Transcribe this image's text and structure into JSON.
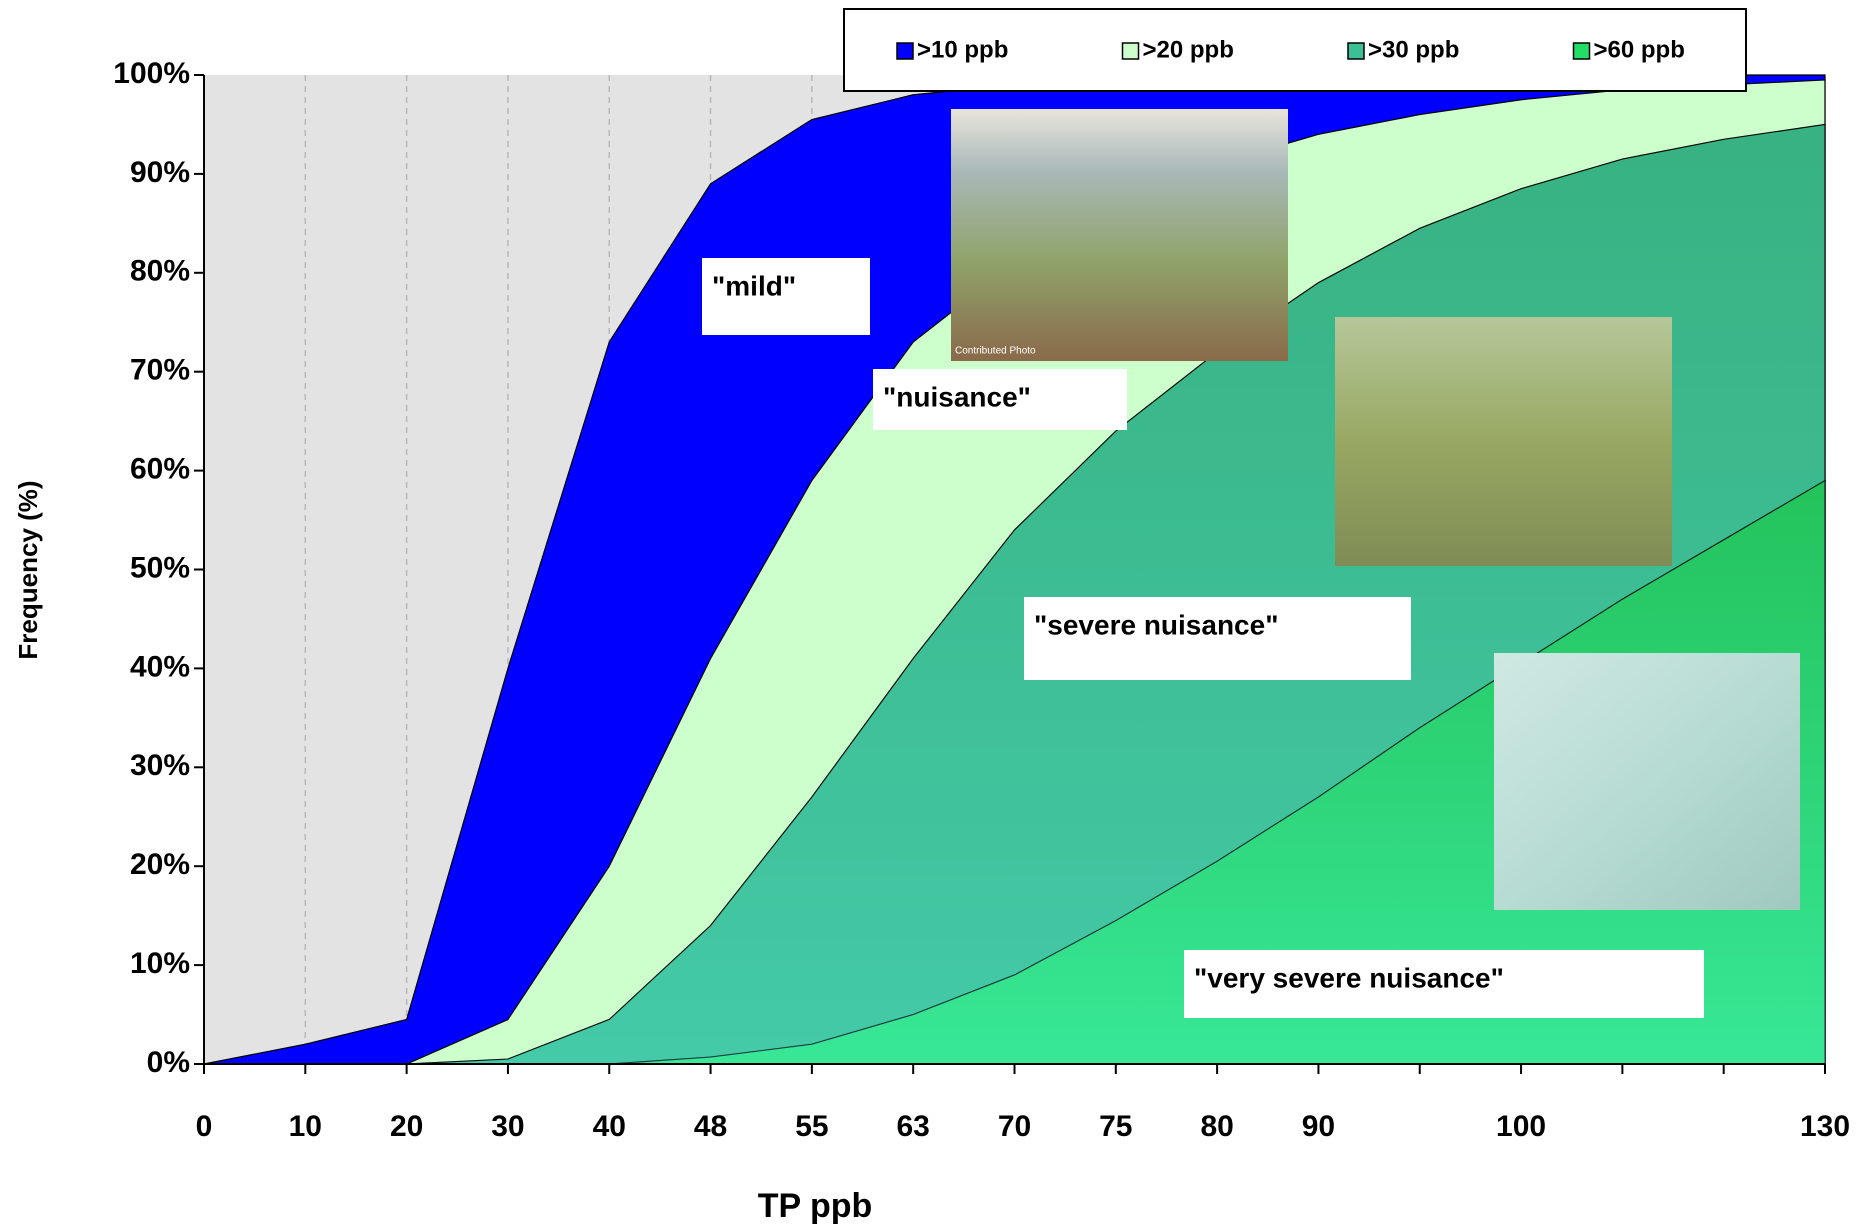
{
  "chart_data": {
    "type": "area",
    "x_label": "TP ppb",
    "y_label": "Frequency (%)",
    "categories": [
      "0",
      "10",
      "20",
      "30",
      "40",
      "48",
      "55",
      "63",
      "70",
      "75",
      "80",
      "90",
      null,
      "100",
      null,
      null,
      "130"
    ],
    "ylim": [
      0,
      100
    ],
    "yticks": [
      {
        "value": 0,
        "label": "0%"
      },
      {
        "value": 10,
        "label": "10%"
      },
      {
        "value": 20,
        "label": "20%"
      },
      {
        "value": 30,
        "label": "30%"
      },
      {
        "value": 40,
        "label": "40%"
      },
      {
        "value": 50,
        "label": "50%"
      },
      {
        "value": 60,
        "label": "60%"
      },
      {
        "value": 70,
        "label": "70%"
      },
      {
        "value": 80,
        "label": "80%"
      },
      {
        "value": 90,
        "label": "90%"
      },
      {
        "value": 100,
        "label": "100%"
      }
    ],
    "grid": true,
    "legend": "top",
    "series": [
      {
        "name": ">10 ppb",
        "color": "#0000ff",
        "values": [
          0,
          2,
          4.5,
          40,
          73,
          89,
          95.5,
          98,
          99,
          99.5,
          99.7,
          99.8,
          99.9,
          99.9,
          100,
          100,
          100
        ]
      },
      {
        "name": ">20 ppb",
        "color": "#ccffcc",
        "values": [
          0,
          0,
          0,
          4.5,
          20,
          41,
          59,
          73,
          81,
          87,
          91,
          94,
          96,
          97.5,
          98.5,
          99,
          99.5
        ]
      },
      {
        "name": ">30 ppb",
        "color": "#3dbf95",
        "values": [
          0,
          0,
          0,
          0.5,
          4.5,
          14,
          27,
          41,
          54,
          64,
          72,
          79,
          84.5,
          88.5,
          91.5,
          93.5,
          95
        ]
      },
      {
        "name": ">60 ppb",
        "color": "#22dd66",
        "values": [
          0,
          0,
          0,
          0,
          0,
          0.7,
          2,
          5,
          9,
          14.5,
          20.5,
          27,
          34,
          40.5,
          47,
          53,
          59
        ]
      }
    ],
    "annotations": [
      "\"mild\"",
      "\"nuisance\"",
      "\"severe nuisance\"",
      "\"very  severe nuisance\""
    ],
    "photo_caption": "Contributed Photo"
  }
}
